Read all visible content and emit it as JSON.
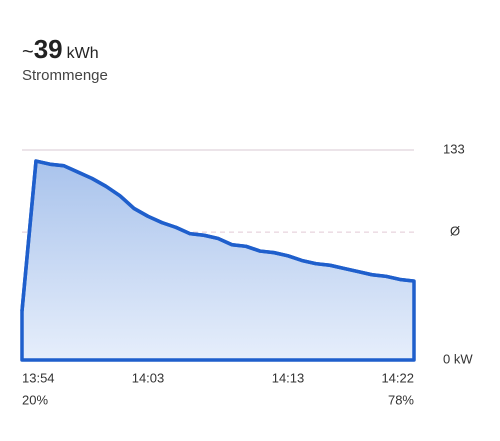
{
  "header": {
    "prefix": "~",
    "value": "39",
    "unit": "kWh",
    "label": "Strommenge"
  },
  "chart_data": {
    "type": "area",
    "categories": [
      "13:54",
      null,
      null,
      null,
      null,
      null,
      null,
      null,
      null,
      "14:03",
      null,
      null,
      null,
      null,
      null,
      null,
      null,
      null,
      null,
      "14:13",
      null,
      null,
      null,
      null,
      null,
      null,
      null,
      null,
      "14:22"
    ],
    "values": [
      31,
      126,
      124,
      123,
      119,
      115,
      110,
      104,
      96,
      91,
      87,
      84,
      80,
      79,
      77,
      73,
      72,
      69,
      68,
      66,
      63,
      61,
      60,
      58,
      56,
      54,
      53,
      51,
      50
    ],
    "color": "#1f5fcc",
    "ylim": [
      0,
      133
    ],
    "yticks": [
      {
        "value": 0,
        "label": "0 kW"
      },
      133
    ],
    "average": {
      "value": 81,
      "label": "Ø"
    },
    "start_soc": "20%",
    "end_soc": "78%"
  }
}
